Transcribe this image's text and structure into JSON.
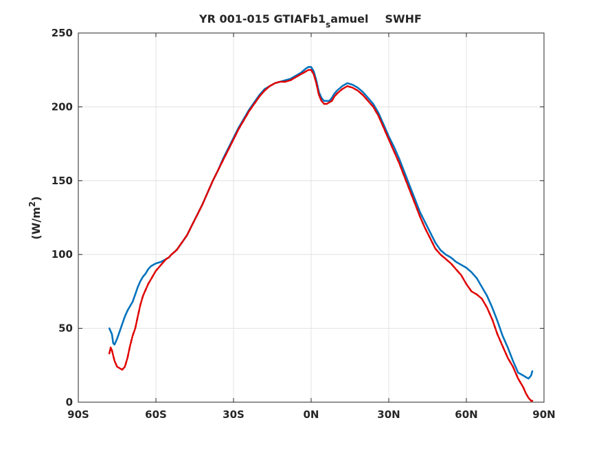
{
  "chart_data": {
    "type": "line",
    "title_main": "YR 001-015 GTIAFb1",
    "title_sub": "s",
    "title_rest": "amuel",
    "title_var": "SWHF",
    "ylabel_text": "(W/m",
    "ylabel_sup": "2",
    "ylabel_close": ")",
    "xlim": [
      -90,
      90
    ],
    "ylim": [
      0,
      250
    ],
    "x_ticks": [
      -90,
      -60,
      -30,
      0,
      30,
      60,
      90
    ],
    "x_tick_labels": [
      "90S",
      "60S",
      "30S",
      "0N",
      "30N",
      "60N",
      "90N"
    ],
    "y_ticks": [
      0,
      50,
      100,
      150,
      200,
      250
    ],
    "y_tick_labels": [
      "0",
      "50",
      "100",
      "150",
      "200",
      "250"
    ],
    "grid": true,
    "series": [
      {
        "color": "#0072bd",
        "style": "solid",
        "x": [
          -78,
          -77,
          -76.5,
          -76,
          -75,
          -74,
          -73,
          -72,
          -71,
          -70,
          -69,
          -68,
          -67,
          -66,
          -65,
          -64,
          -63,
          -62,
          -61,
          -60,
          -58,
          -56,
          -55,
          -54,
          -52,
          -50,
          -48,
          -46,
          -44,
          -42,
          -40,
          -38,
          -36,
          -34,
          -32,
          -30,
          -28,
          -26,
          -24,
          -22,
          -20,
          -18,
          -16,
          -14,
          -12,
          -10,
          -8,
          -6,
          -4,
          -2,
          -1,
          0,
          1,
          2,
          3,
          4,
          5,
          6,
          7,
          8,
          9,
          10,
          12,
          14,
          16,
          18,
          20,
          22,
          24,
          26,
          28,
          30,
          32,
          34,
          36,
          38,
          40,
          42,
          44,
          46,
          48,
          50,
          52,
          54,
          56,
          58,
          60,
          62,
          64,
          66,
          68,
          70,
          72,
          74,
          76,
          78,
          80,
          82,
          83,
          84,
          85,
          85.5
        ],
        "y": [
          50,
          46,
          40,
          39,
          43,
          48,
          53,
          58,
          62,
          65,
          68,
          73,
          78,
          82,
          85,
          87,
          90,
          92,
          93,
          94,
          95,
          97,
          98,
          100,
          103,
          108,
          113,
          120,
          127,
          134,
          142,
          150,
          157,
          165,
          172,
          179,
          186,
          192,
          198,
          203,
          208,
          212,
          214,
          216,
          217,
          218,
          219,
          221,
          223,
          226,
          227,
          227,
          224,
          218,
          210,
          206,
          204,
          204,
          204,
          206,
          209,
          211,
          214,
          216,
          215,
          213,
          210,
          206,
          202,
          196,
          188,
          180,
          173,
          165,
          156,
          147,
          138,
          129,
          122,
          115,
          108,
          103,
          100,
          98,
          95,
          93,
          91,
          88,
          84,
          78,
          72,
          64,
          55,
          45,
          37,
          28,
          20,
          18,
          17,
          16,
          18,
          21
        ]
      },
      {
        "color": "#e00000",
        "style": "dashed",
        "x": [
          -78,
          -77.5,
          -77,
          -76,
          -75,
          -74,
          -73,
          -72,
          -71,
          -70,
          -69,
          -68,
          -67,
          -66,
          -65,
          -64,
          -63,
          -62,
          -61,
          -60,
          -58,
          -56,
          -55,
          -54,
          -52,
          -50,
          -48,
          -46,
          -44,
          -42,
          -40,
          -38,
          -36,
          -34,
          -32,
          -30,
          -28,
          -26,
          -24,
          -22,
          -20,
          -18,
          -16,
          -14,
          -12,
          -10,
          -8,
          -6,
          -4,
          -2,
          -1,
          0,
          1,
          2,
          3,
          4,
          5,
          6,
          7,
          8,
          9,
          10,
          12,
          14,
          16,
          18,
          20,
          22,
          24,
          26,
          28,
          30,
          32,
          34,
          36,
          38,
          40,
          42,
          44,
          46,
          48,
          50,
          52,
          54,
          56,
          58,
          60,
          62,
          64,
          66,
          68,
          70,
          72,
          74,
          76,
          78,
          80,
          82,
          83,
          84,
          85,
          85.5
        ],
        "y": [
          33,
          37,
          35,
          28,
          24,
          23,
          22,
          24,
          30,
          38,
          45,
          50,
          58,
          66,
          72,
          76,
          80,
          83,
          86,
          89,
          93,
          97,
          98,
          100,
          103,
          108,
          113,
          120,
          127,
          134,
          142,
          150,
          157,
          164,
          171,
          178,
          185,
          191,
          197,
          202,
          207,
          211,
          214,
          216,
          217,
          217,
          218,
          220,
          222,
          224,
          225,
          225,
          222,
          216,
          208,
          204,
          202,
          202,
          203,
          204,
          207,
          209,
          212,
          214,
          213,
          211,
          208,
          204,
          200,
          194,
          186,
          178,
          170,
          162,
          153,
          144,
          135,
          126,
          118,
          111,
          104,
          100,
          97,
          94,
          90,
          86,
          80,
          75,
          73,
          70,
          64,
          56,
          46,
          38,
          30,
          24,
          16,
          10,
          6,
          3,
          1,
          1
        ]
      }
    ]
  }
}
